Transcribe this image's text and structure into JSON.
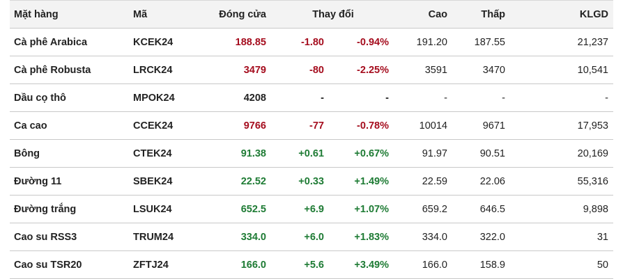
{
  "table": {
    "header": [
      "Mặt hàng",
      "Mã",
      "Đóng cửa",
      "Thay đổi",
      "Cao",
      "Thấp",
      "KLGD"
    ],
    "rows": [
      {
        "cells": [
          "Cà phê Arabica",
          "KCEK24",
          "188.85",
          "-1.80",
          "-0.94%",
          "191.20",
          "187.55",
          "21,237"
        ],
        "color": "#a50d1e"
      },
      {
        "cells": [
          "Cà phê Robusta",
          "LRCK24",
          "3479",
          "-80",
          "-2.25%",
          "3591",
          "3470",
          "10,541"
        ],
        "color": "#a50d1e"
      },
      {
        "cells": [
          "Dầu cọ thô",
          "MPOK24",
          "4208",
          "-",
          "-",
          "-",
          "-",
          "-"
        ],
        "color": "#222222"
      },
      {
        "cells": [
          "Ca cao",
          "CCEK24",
          "9766",
          "-77",
          "-0.78%",
          "10014",
          "9671",
          "17,953"
        ],
        "color": "#a50d1e"
      },
      {
        "cells": [
          "Bông",
          "CTEK24",
          "91.38",
          "+0.61",
          "+0.67%",
          "91.97",
          "90.51",
          "20,169"
        ],
        "color": "#1e7b34"
      },
      {
        "cells": [
          "Đường 11",
          "SBEK24",
          "22.52",
          "+0.33",
          "+1.49%",
          "22.59",
          "22.06",
          "55,316"
        ],
        "color": "#1e7b34"
      },
      {
        "cells": [
          "Đường trắng",
          "LSUK24",
          "652.5",
          "+6.9",
          "+1.07%",
          "659.2",
          "646.5",
          "9,898"
        ],
        "color": "#1e7b34"
      },
      {
        "cells": [
          "Cao su RSS3",
          "TRUM24",
          "334.0",
          "+6.0",
          "+1.83%",
          "334.0",
          "322.0",
          "31"
        ],
        "color": "#1e7b34"
      },
      {
        "cells": [
          "Cao su TSR20",
          "ZFTJ24",
          "166.0",
          "+5.6",
          "+3.49%",
          "166.0",
          "158.9",
          "50"
        ],
        "color": "#1e7b34"
      }
    ]
  }
}
